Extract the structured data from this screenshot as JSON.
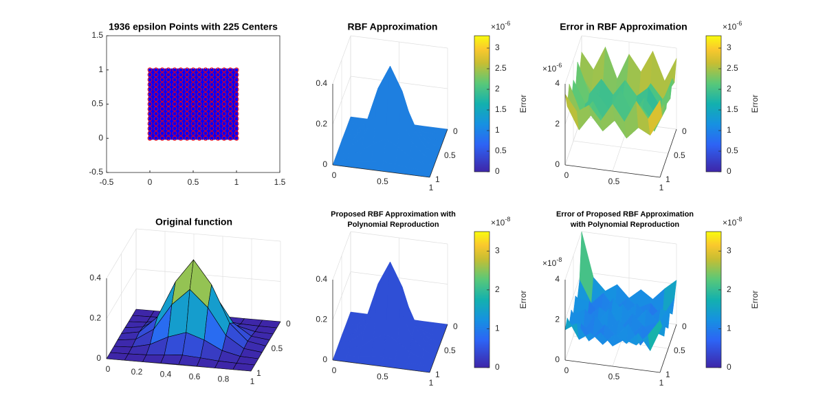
{
  "chart_data": [
    {
      "type": "scatter",
      "title": "1936  epsilon Points with 225 Centers",
      "meshgrid": true,
      "xlim": [
        -0.5,
        1.5
      ],
      "ylim": [
        -0.5,
        1.5
      ],
      "xticks": [
        -0.5,
        0,
        0.5,
        1,
        1.5
      ],
      "yticks": [
        -0.5,
        0,
        0.5,
        1,
        1.5
      ],
      "series": [
        {
          "color": "#0000ff",
          "x": [
            0,
            0.023,
            0.047,
            0.07,
            0.093,
            0.116,
            0.14,
            0.163,
            0.186,
            0.209,
            0.233,
            0.256,
            0.279,
            0.302,
            0.326,
            0.349,
            0.372,
            0.395,
            0.419,
            0.442,
            0.465,
            0.488,
            0.512,
            0.535,
            0.558,
            0.581,
            0.605,
            0.628,
            0.651,
            0.674,
            0.698,
            0.721,
            0.744,
            0.767,
            0.791,
            0.814,
            0.837,
            0.86,
            0.884,
            0.907,
            0.93,
            0.953,
            0.977,
            1
          ],
          "y": [
            0,
            0.023,
            0.047,
            0.07,
            0.093,
            0.116,
            0.14,
            0.163,
            0.186,
            0.209,
            0.233,
            0.256,
            0.279,
            0.302,
            0.326,
            0.349,
            0.372,
            0.395,
            0.419,
            0.442,
            0.465,
            0.488,
            0.512,
            0.535,
            0.558,
            0.581,
            0.605,
            0.628,
            0.651,
            0.674,
            0.698,
            0.721,
            0.744,
            0.767,
            0.791,
            0.814,
            0.837,
            0.86,
            0.884,
            0.907,
            0.93,
            0.953,
            0.977,
            1
          ]
        },
        {
          "color": "#ff0000",
          "x": [
            0,
            0.071,
            0.143,
            0.214,
            0.286,
            0.357,
            0.429,
            0.5,
            0.571,
            0.643,
            0.714,
            0.786,
            0.857,
            0.929,
            1
          ],
          "y": [
            0,
            0.071,
            0.143,
            0.214,
            0.286,
            0.357,
            0.429,
            0.5,
            0.571,
            0.643,
            0.714,
            0.786,
            0.857,
            0.929,
            1
          ]
        }
      ]
    },
    {
      "type": "surface",
      "title": "RBF Approximation",
      "color": "#1e7fe0",
      "xlim": [
        0,
        1
      ],
      "ylim": [
        0,
        1
      ],
      "zlim": [
        0,
        0.4
      ],
      "xticks": [
        0,
        0.5,
        1
      ],
      "yticks": [
        0,
        0.5,
        1
      ],
      "zticks": [
        0,
        0.2,
        0.4
      ],
      "x": [
        0,
        0.125,
        0.25,
        0.375,
        0.5,
        0.625,
        0.75,
        0.875,
        1
      ],
      "y": [
        0,
        0.125,
        0.25,
        0.375,
        0.5,
        0.625,
        0.75,
        0.875,
        1
      ],
      "z": [
        [
          0,
          0,
          0,
          0.001,
          0.002,
          0.001,
          0,
          0,
          0
        ],
        [
          0,
          0.001,
          0.004,
          0.012,
          0.018,
          0.012,
          0.004,
          0.001,
          0
        ],
        [
          0,
          0.004,
          0.025,
          0.07,
          0.1,
          0.07,
          0.025,
          0.004,
          0
        ],
        [
          0.001,
          0.012,
          0.07,
          0.2,
          0.283,
          0.2,
          0.07,
          0.012,
          0.001
        ],
        [
          0.002,
          0.018,
          0.1,
          0.283,
          0.4,
          0.283,
          0.1,
          0.018,
          0.002
        ],
        [
          0.001,
          0.012,
          0.07,
          0.2,
          0.283,
          0.2,
          0.07,
          0.012,
          0.001
        ],
        [
          0,
          0.004,
          0.025,
          0.07,
          0.1,
          0.07,
          0.025,
          0.004,
          0
        ],
        [
          0,
          0.001,
          0.004,
          0.012,
          0.018,
          0.012,
          0.004,
          0.001,
          0
        ],
        [
          0,
          0,
          0,
          0.001,
          0.002,
          0.001,
          0,
          0,
          0
        ]
      ],
      "colorbar": {
        "label": "Error",
        "clim": [
          0,
          3.3
        ],
        "ticks": [
          0,
          0.5,
          1,
          1.5,
          2,
          2.5,
          3
        ],
        "multiplier": "×10",
        "power": "-6"
      }
    },
    {
      "type": "surface",
      "title": "Error in RBF Approximation",
      "color_by": "z",
      "xlim": [
        0,
        1
      ],
      "ylim": [
        0,
        1
      ],
      "zlim": [
        0,
        4
      ],
      "xticks": [
        0,
        0.5,
        1
      ],
      "yticks": [
        0,
        0.5,
        1
      ],
      "zticks": [
        0,
        2,
        4
      ],
      "z_multiplier": "×10",
      "z_power": "-6",
      "x": [
        0,
        0.125,
        0.25,
        0.375,
        0.5,
        0.625,
        0.75,
        0.875,
        1
      ],
      "y": [
        0,
        0.125,
        0.25,
        0.375,
        0.5,
        0.625,
        0.75,
        0.875,
        1
      ],
      "z": [
        [
          3.2,
          2.4,
          3.6,
          2.1,
          3.4,
          2.6,
          3.7,
          2.3,
          3.5
        ],
        [
          2.5,
          1.6,
          2.2,
          1.4,
          2.3,
          1.5,
          2.4,
          1.7,
          2.6
        ],
        [
          3.3,
          1.8,
          2.6,
          1.9,
          2.7,
          2.0,
          2.5,
          1.6,
          3.1
        ],
        [
          2.2,
          1.5,
          2.0,
          1.3,
          2.1,
          1.4,
          1.9,
          1.5,
          2.4
        ],
        [
          3.0,
          1.9,
          2.5,
          1.8,
          2.8,
          1.7,
          2.6,
          1.8,
          3.2
        ],
        [
          2.3,
          1.4,
          2.1,
          1.5,
          2.0,
          1.6,
          2.2,
          1.3,
          2.5
        ],
        [
          3.4,
          2.0,
          2.7,
          1.7,
          2.6,
          1.9,
          2.8,
          2.1,
          3.0
        ],
        [
          2.6,
          1.5,
          2.3,
          1.6,
          2.2,
          1.4,
          2.0,
          1.7,
          2.7
        ],
        [
          3.5,
          2.7,
          3.1,
          2.4,
          3.3,
          2.5,
          3.6,
          2.8,
          3.8
        ]
      ],
      "colorbar": {
        "label": "Error",
        "clim": [
          0,
          3.3
        ],
        "ticks": [
          0,
          0.5,
          1,
          1.5,
          2,
          2.5,
          3
        ],
        "multiplier": "×10",
        "power": "-6"
      }
    },
    {
      "type": "surface",
      "title": "Original function",
      "color_by": "z",
      "edgecolor": "#000000",
      "xlim": [
        0,
        1
      ],
      "ylim": [
        0,
        1
      ],
      "zlim": [
        0,
        0.4
      ],
      "xticks": [
        0,
        0.2,
        0.4,
        0.6,
        0.8,
        1
      ],
      "yticks": [
        0,
        0.5,
        1
      ],
      "zticks": [
        0,
        0.2,
        0.4
      ],
      "x": [
        0,
        0.125,
        0.25,
        0.375,
        0.5,
        0.625,
        0.75,
        0.875,
        1
      ],
      "y": [
        0,
        0.125,
        0.25,
        0.375,
        0.5,
        0.625,
        0.75,
        0.875,
        1
      ],
      "z": [
        [
          0,
          0,
          0,
          0.001,
          0.002,
          0.001,
          0,
          0,
          0
        ],
        [
          0,
          0.001,
          0.004,
          0.012,
          0.018,
          0.012,
          0.004,
          0.001,
          0
        ],
        [
          0,
          0.004,
          0.025,
          0.07,
          0.1,
          0.07,
          0.025,
          0.004,
          0
        ],
        [
          0.001,
          0.012,
          0.07,
          0.2,
          0.283,
          0.2,
          0.07,
          0.012,
          0.001
        ],
        [
          0.002,
          0.018,
          0.1,
          0.283,
          0.4,
          0.283,
          0.1,
          0.018,
          0.002
        ],
        [
          0.001,
          0.012,
          0.07,
          0.2,
          0.283,
          0.2,
          0.07,
          0.012,
          0.001
        ],
        [
          0,
          0.004,
          0.025,
          0.07,
          0.1,
          0.07,
          0.025,
          0.004,
          0
        ],
        [
          0,
          0.001,
          0.004,
          0.012,
          0.018,
          0.012,
          0.004,
          0.001,
          0
        ],
        [
          0,
          0,
          0,
          0.001,
          0.002,
          0.001,
          0,
          0,
          0
        ]
      ]
    },
    {
      "type": "surface",
      "title": [
        "Proposed RBF Approximation with",
        "Polynomial Reproduction"
      ],
      "color": "#2f4fd6",
      "xlim": [
        0,
        1
      ],
      "ylim": [
        0,
        1
      ],
      "zlim": [
        0,
        0.4
      ],
      "xticks": [
        0,
        0.5,
        1
      ],
      "yticks": [
        0,
        0.5,
        1
      ],
      "zticks": [
        0,
        0.2,
        0.4
      ],
      "x": [
        0,
        0.125,
        0.25,
        0.375,
        0.5,
        0.625,
        0.75,
        0.875,
        1
      ],
      "y": [
        0,
        0.125,
        0.25,
        0.375,
        0.5,
        0.625,
        0.75,
        0.875,
        1
      ],
      "z": [
        [
          0,
          0,
          0,
          0.001,
          0.002,
          0.001,
          0,
          0,
          0
        ],
        [
          0,
          0.001,
          0.004,
          0.012,
          0.018,
          0.012,
          0.004,
          0.001,
          0
        ],
        [
          0,
          0.004,
          0.025,
          0.07,
          0.1,
          0.07,
          0.025,
          0.004,
          0
        ],
        [
          0.001,
          0.012,
          0.07,
          0.2,
          0.283,
          0.2,
          0.07,
          0.012,
          0.001
        ],
        [
          0.002,
          0.018,
          0.1,
          0.283,
          0.4,
          0.283,
          0.1,
          0.018,
          0.002
        ],
        [
          0.001,
          0.012,
          0.07,
          0.2,
          0.283,
          0.2,
          0.07,
          0.012,
          0.001
        ],
        [
          0,
          0.004,
          0.025,
          0.07,
          0.1,
          0.07,
          0.025,
          0.004,
          0
        ],
        [
          0,
          0.001,
          0.004,
          0.012,
          0.018,
          0.012,
          0.004,
          0.001,
          0
        ],
        [
          0,
          0,
          0,
          0.001,
          0.002,
          0.001,
          0,
          0,
          0
        ]
      ],
      "colorbar": {
        "label": "Error",
        "clim": [
          0,
          3.5
        ],
        "ticks": [
          0,
          1,
          2,
          3
        ],
        "multiplier": "×10",
        "power": "-8"
      }
    },
    {
      "type": "surface",
      "title": [
        "Error of Proposed RBF Approximation",
        "with Polynomial Reproduction"
      ],
      "color_by": "z",
      "xlim": [
        0,
        1
      ],
      "ylim": [
        0,
        1
      ],
      "zlim": [
        0,
        4
      ],
      "xticks": [
        0,
        0.5,
        1
      ],
      "yticks": [
        0,
        0.5,
        1
      ],
      "zticks": [
        0,
        2,
        4
      ],
      "z_multiplier": "×10",
      "z_power": "-8",
      "x": [
        0,
        0.125,
        0.25,
        0.375,
        0.5,
        0.625,
        0.75,
        0.875,
        1
      ],
      "y": [
        0,
        0.125,
        0.25,
        0.375,
        0.5,
        0.625,
        0.75,
        0.875,
        1
      ],
      "z": [
        [
          4.0,
          1.8,
          1.2,
          1.6,
          1.0,
          1.5,
          1.1,
          1.7,
          2.2
        ],
        [
          1.9,
          0.8,
          1.4,
          0.7,
          1.3,
          0.9,
          1.2,
          0.6,
          1.6
        ],
        [
          1.3,
          1.2,
          0.6,
          1.5,
          0.8,
          1.4,
          0.7,
          1.3,
          1.1
        ],
        [
          1.7,
          0.7,
          1.3,
          0.9,
          1.6,
          0.8,
          1.5,
          0.9,
          1.8
        ],
        [
          1.1,
          1.4,
          0.8,
          1.6,
          0.7,
          1.5,
          0.9,
          1.2,
          1.0
        ],
        [
          1.6,
          0.6,
          1.5,
          0.8,
          1.4,
          0.7,
          1.3,
          0.8,
          1.7
        ],
        [
          1.2,
          1.3,
          0.7,
          1.4,
          0.9,
          1.6,
          0.6,
          1.4,
          1.2
        ],
        [
          1.8,
          0.8,
          1.2,
          0.7,
          1.3,
          0.9,
          1.5,
          0.7,
          2.0
        ],
        [
          1.5,
          1.9,
          1.1,
          1.6,
          1.0,
          1.4,
          1.2,
          1.8,
          2.6
        ]
      ],
      "colorbar": {
        "label": "Error",
        "clim": [
          0,
          3.5
        ],
        "ticks": [
          0,
          1,
          2,
          3
        ],
        "multiplier": "×10",
        "power": "-8"
      }
    }
  ]
}
